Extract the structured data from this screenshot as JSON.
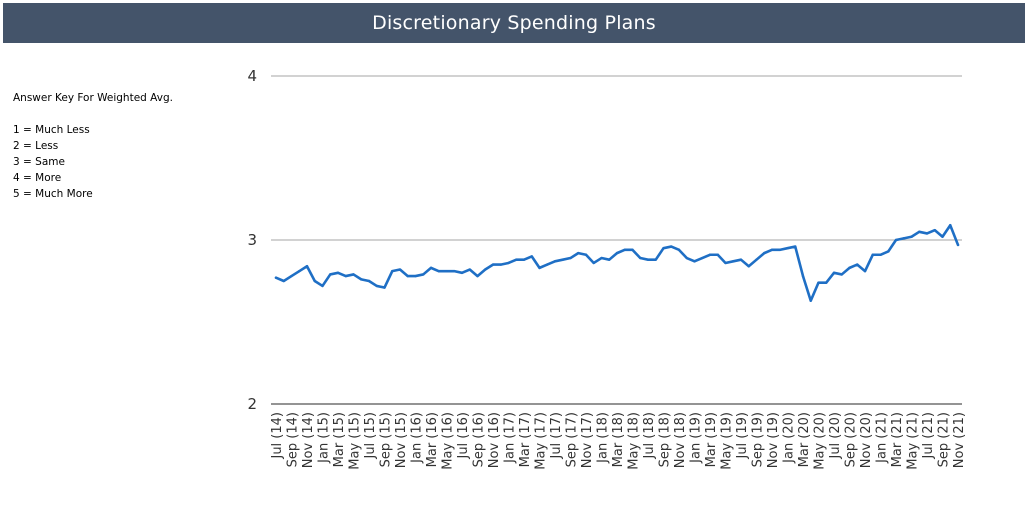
{
  "header": {
    "title": "Discretionary Spending Plans",
    "background": "#44546a"
  },
  "answer_key": {
    "heading": "Answer Key For Weighted Avg.",
    "items": [
      "1 = Much Less",
      "2 = Less",
      "3 = Same",
      "4 = More",
      "5 = Much More"
    ]
  },
  "chart_data": {
    "type": "line",
    "title": "Discretionary Spending Plans",
    "xlabel": "",
    "ylabel": "",
    "ylim": [
      2,
      4
    ],
    "y_ticks": [
      "2",
      "3",
      "4"
    ],
    "grid": true,
    "line_color": "#1f6fc5",
    "x_tick_labels": [
      "Jul (14)",
      "Sep (14)",
      "Nov (14)",
      "Jan (15)",
      "Mar (15)",
      "May (15)",
      "Jul (15)",
      "Sep (15)",
      "Nov (15)",
      "Jan (16)",
      "Mar (16)",
      "May (16)",
      "Jul (16)",
      "Sep (16)",
      "Nov (16)",
      "Jan (17)",
      "Mar (17)",
      "May (17)",
      "Jul (17)",
      "Sep (17)",
      "Nov (17)",
      "Jan (18)",
      "Mar (18)",
      "May (18)",
      "Jul (18)",
      "Sep (18)",
      "Nov (18)",
      "Jan (19)",
      "Mar (19)",
      "May (19)",
      "Jul (19)",
      "Sep (19)",
      "Nov (19)",
      "Jan (20)",
      "Mar (20)",
      "May (20)",
      "Jul (20)",
      "Sep (20)",
      "Nov (20)",
      "Jan (21)",
      "Mar (21)",
      "May (21)",
      "Jul (21)",
      "Sep (21)",
      "Nov (21)"
    ],
    "series": [
      {
        "x": [
          "Jul (14)",
          "Aug (14)",
          "Sep (14)",
          "Oct (14)",
          "Nov (14)",
          "Dec (14)",
          "Jan (15)",
          "Feb (15)",
          "Mar (15)",
          "Apr (15)",
          "May (15)",
          "Jun (15)",
          "Jul (15)",
          "Aug (15)",
          "Sep (15)",
          "Oct (15)",
          "Nov (15)",
          "Dec (15)",
          "Jan (16)",
          "Feb (16)",
          "Mar (16)",
          "Apr (16)",
          "May (16)",
          "Jun (16)",
          "Jul (16)",
          "Aug (16)",
          "Sep (16)",
          "Oct (16)",
          "Nov (16)",
          "Dec (16)",
          "Jan (17)",
          "Feb (17)",
          "Mar (17)",
          "Apr (17)",
          "May (17)",
          "Jun (17)",
          "Jul (17)",
          "Aug (17)",
          "Sep (17)",
          "Oct (17)",
          "Nov (17)",
          "Dec (17)",
          "Jan (18)",
          "Feb (18)",
          "Mar (18)",
          "Apr (18)",
          "May (18)",
          "Jun (18)",
          "Jul (18)",
          "Aug (18)",
          "Sep (18)",
          "Oct (18)",
          "Nov (18)",
          "Dec (18)",
          "Jan (19)",
          "Feb (19)",
          "Mar (19)",
          "Apr (19)",
          "May (19)",
          "Jun (19)",
          "Jul (19)",
          "Aug (19)",
          "Sep (19)",
          "Oct (19)",
          "Nov (19)",
          "Dec (19)",
          "Jan (20)",
          "Feb (20)",
          "Mar (20)",
          "Apr (20)",
          "May (20)",
          "Jun (20)",
          "Jul (20)",
          "Aug (20)",
          "Sep (20)",
          "Oct (20)",
          "Nov (20)",
          "Dec (20)",
          "Jan (21)",
          "Feb (21)",
          "Mar (21)",
          "Apr (21)",
          "May (21)",
          "Jun (21)",
          "Jul (21)",
          "Aug (21)",
          "Sep (21)",
          "Oct (21)",
          "Nov (21)"
        ],
        "values": [
          2.77,
          2.75,
          2.78,
          2.81,
          2.84,
          2.75,
          2.72,
          2.79,
          2.8,
          2.78,
          2.79,
          2.76,
          2.75,
          2.72,
          2.71,
          2.81,
          2.82,
          2.78,
          2.78,
          2.79,
          2.83,
          2.81,
          2.81,
          2.81,
          2.8,
          2.82,
          2.78,
          2.82,
          2.85,
          2.85,
          2.86,
          2.88,
          2.88,
          2.9,
          2.83,
          2.85,
          2.87,
          2.88,
          2.89,
          2.92,
          2.91,
          2.86,
          2.89,
          2.88,
          2.92,
          2.94,
          2.94,
          2.89,
          2.88,
          2.88,
          2.95,
          2.96,
          2.94,
          2.89,
          2.87,
          2.89,
          2.91,
          2.91,
          2.86,
          2.87,
          2.88,
          2.84,
          2.88,
          2.92,
          2.94,
          2.94,
          2.95,
          2.96,
          2.78,
          2.63,
          2.74,
          2.74,
          2.8,
          2.79,
          2.83,
          2.85,
          2.81,
          2.91,
          2.91,
          2.93,
          3.0,
          3.01,
          3.02,
          3.05,
          3.04,
          3.06,
          3.02,
          3.09,
          2.97
        ]
      }
    ]
  }
}
